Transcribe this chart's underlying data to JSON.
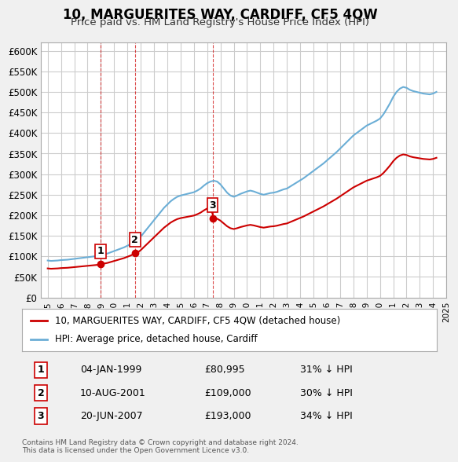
{
  "title": "10, MARGUERITES WAY, CARDIFF, CF5 4QW",
  "subtitle": "Price paid vs. HM Land Registry's House Price Index (HPI)",
  "legend_label_red": "10, MARGUERITES WAY, CARDIFF, CF5 4QW (detached house)",
  "legend_label_blue": "HPI: Average price, detached house, Cardiff",
  "footer": "Contains HM Land Registry data © Crown copyright and database right 2024.\nThis data is licensed under the Open Government Licence v3.0.",
  "sale_dates": [
    "1999-01-04",
    "2001-08-10",
    "2007-06-20"
  ],
  "sale_prices": [
    80995,
    109000,
    193000
  ],
  "sale_labels": [
    "1",
    "2",
    "3"
  ],
  "table_rows": [
    [
      "1",
      "04-JAN-1999",
      "£80,995",
      "31% ↓ HPI"
    ],
    [
      "2",
      "10-AUG-2001",
      "£109,000",
      "30% ↓ HPI"
    ],
    [
      "3",
      "20-JUN-2007",
      "£193,000",
      "34% ↓ HPI"
    ]
  ],
  "hpi_color": "#6baed6",
  "sale_color": "#cc0000",
  "vline_color": "#cc0000",
  "ylim": [
    0,
    620000
  ],
  "yticks": [
    0,
    50000,
    100000,
    150000,
    200000,
    250000,
    300000,
    350000,
    400000,
    450000,
    500000,
    550000,
    600000
  ],
  "background_color": "#f0f0f0",
  "plot_background": "#ffffff",
  "grid_color": "#cccccc"
}
